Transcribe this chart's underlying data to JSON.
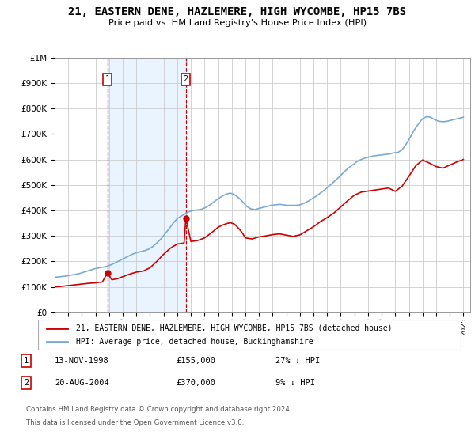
{
  "title": "21, EASTERN DENE, HAZLEMERE, HIGH WYCOMBE, HP15 7BS",
  "subtitle": "Price paid vs. HM Land Registry's House Price Index (HPI)",
  "legend_line1": "21, EASTERN DENE, HAZLEMERE, HIGH WYCOMBE, HP15 7BS (detached house)",
  "legend_line2": "HPI: Average price, detached house, Buckinghamshire",
  "sale1_date": "13-NOV-1998",
  "sale1_price": "£155,000",
  "sale1_note": "27% ↓ HPI",
  "sale2_date": "20-AUG-2004",
  "sale2_price": "£370,000",
  "sale2_note": "9% ↓ HPI",
  "footnote1": "Contains HM Land Registry data © Crown copyright and database right 2024.",
  "footnote2": "This data is licensed under the Open Government Licence v3.0.",
  "sale1_x": 1998.87,
  "sale1_y": 155000,
  "sale2_x": 2004.63,
  "sale2_y": 370000,
  "red_color": "#cc0000",
  "blue_color": "#7aabcf",
  "marker_box_color": "#cc0000",
  "bg_color": "#ffffff",
  "grid_color": "#cccccc",
  "shade_color": "#ddeeff",
  "ylim": [
    0,
    1000000
  ],
  "xlim": [
    1995.0,
    2025.5
  ],
  "years_hpi": [
    1995.0,
    1995.3,
    1995.6,
    1995.9,
    1996.2,
    1996.5,
    1996.8,
    1997.1,
    1997.4,
    1997.7,
    1998.0,
    1998.3,
    1998.6,
    1998.9,
    1999.2,
    1999.5,
    1999.8,
    2000.1,
    2000.4,
    2000.7,
    2001.0,
    2001.3,
    2001.6,
    2001.9,
    2002.2,
    2002.5,
    2002.8,
    2003.1,
    2003.4,
    2003.7,
    2004.0,
    2004.3,
    2004.6,
    2004.9,
    2005.2,
    2005.5,
    2005.8,
    2006.1,
    2006.4,
    2006.7,
    2007.0,
    2007.3,
    2007.6,
    2007.9,
    2008.2,
    2008.5,
    2008.8,
    2009.1,
    2009.4,
    2009.7,
    2010.0,
    2010.3,
    2010.6,
    2010.9,
    2011.2,
    2011.5,
    2011.8,
    2012.1,
    2012.4,
    2012.7,
    2013.0,
    2013.3,
    2013.6,
    2013.9,
    2014.2,
    2014.5,
    2014.8,
    2015.1,
    2015.4,
    2015.7,
    2016.0,
    2016.3,
    2016.6,
    2016.9,
    2017.2,
    2017.5,
    2017.8,
    2018.1,
    2018.4,
    2018.7,
    2019.0,
    2019.3,
    2019.6,
    2019.9,
    2020.2,
    2020.5,
    2020.8,
    2021.1,
    2021.4,
    2021.7,
    2022.0,
    2022.3,
    2022.6,
    2022.9,
    2023.2,
    2023.5,
    2023.8,
    2024.1,
    2024.4,
    2024.7,
    2025.0
  ],
  "hpi_values": [
    138000,
    139000,
    141000,
    143000,
    146000,
    149000,
    152000,
    157000,
    162000,
    167000,
    172000,
    175000,
    178000,
    182000,
    188000,
    196000,
    204000,
    212000,
    220000,
    228000,
    234000,
    238000,
    242000,
    248000,
    258000,
    272000,
    288000,
    308000,
    328000,
    350000,
    368000,
    378000,
    388000,
    396000,
    400000,
    402000,
    405000,
    412000,
    422000,
    434000,
    446000,
    456000,
    464000,
    468000,
    462000,
    450000,
    434000,
    416000,
    406000,
    403000,
    408000,
    412000,
    416000,
    420000,
    422000,
    424000,
    422000,
    420000,
    420000,
    420000,
    422000,
    428000,
    436000,
    446000,
    456000,
    468000,
    480000,
    494000,
    508000,
    522000,
    538000,
    554000,
    568000,
    580000,
    592000,
    600000,
    606000,
    610000,
    614000,
    616000,
    618000,
    620000,
    622000,
    626000,
    628000,
    638000,
    660000,
    688000,
    716000,
    740000,
    760000,
    768000,
    766000,
    756000,
    750000,
    748000,
    750000,
    754000,
    758000,
    762000,
    766000
  ],
  "years_red": [
    1995.0,
    1995.5,
    1996.0,
    1996.5,
    1997.0,
    1997.5,
    1998.0,
    1998.5,
    1998.87,
    1999.2,
    1999.6,
    2000.0,
    2000.5,
    2001.0,
    2001.5,
    2002.0,
    2002.5,
    2003.0,
    2003.5,
    2004.0,
    2004.5,
    2004.63,
    2005.0,
    2005.5,
    2006.0,
    2006.5,
    2007.0,
    2007.3,
    2007.6,
    2007.9,
    2008.2,
    2008.5,
    2008.8,
    2009.0,
    2009.5,
    2010.0,
    2010.5,
    2011.0,
    2011.5,
    2012.0,
    2012.5,
    2013.0,
    2013.5,
    2014.0,
    2014.5,
    2015.0,
    2015.5,
    2016.0,
    2016.5,
    2017.0,
    2017.5,
    2018.0,
    2018.5,
    2019.0,
    2019.5,
    2020.0,
    2020.5,
    2021.0,
    2021.5,
    2022.0,
    2022.5,
    2023.0,
    2023.5,
    2024.0,
    2024.5,
    2025.0
  ],
  "red_values": [
    100000,
    102000,
    105000,
    108000,
    111000,
    114000,
    116000,
    119000,
    155000,
    128000,
    132000,
    140000,
    150000,
    158000,
    162000,
    175000,
    200000,
    228000,
    252000,
    268000,
    272000,
    370000,
    278000,
    282000,
    292000,
    312000,
    334000,
    342000,
    348000,
    352000,
    346000,
    330000,
    310000,
    292000,
    288000,
    296000,
    300000,
    305000,
    308000,
    303000,
    298000,
    304000,
    320000,
    336000,
    356000,
    372000,
    390000,
    414000,
    438000,
    460000,
    472000,
    476000,
    480000,
    484000,
    488000,
    475000,
    495000,
    534000,
    575000,
    598000,
    586000,
    572000,
    566000,
    578000,
    590000,
    600000
  ]
}
